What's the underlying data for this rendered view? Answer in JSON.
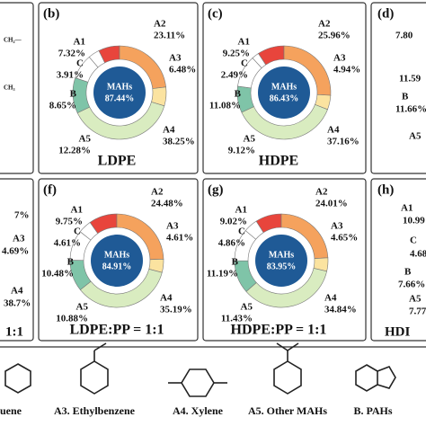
{
  "chart_data": [
    {
      "type": "donut",
      "panel": "(b)",
      "title": "LDPE",
      "center_label": "MAHs",
      "center_value": 87.44,
      "center_value_label": "87.44%",
      "categories": [
        "A1",
        "A2",
        "A3",
        "A4",
        "A5",
        "B",
        "C"
      ],
      "values": [
        7.32,
        23.11,
        6.48,
        38.25,
        12.28,
        8.65,
        3.91
      ],
      "value_labels": [
        "7.32%",
        "23.11%",
        "6.48%",
        "38.25%",
        "12.28%",
        "8.65%",
        "3.91%"
      ],
      "colors": [
        "#e8453c",
        "#f5a25d",
        "#fbe3a0",
        "#d9ecc0",
        "#7fc4a8",
        "#ffffff",
        "#ffffff"
      ],
      "center_color": "#1f5a96"
    },
    {
      "type": "donut",
      "panel": "(c)",
      "title": "HDPE",
      "center_label": "MAHs",
      "center_value": 86.43,
      "center_value_label": "86.43%",
      "categories": [
        "A1",
        "A2",
        "A3",
        "A4",
        "A5",
        "B",
        "C"
      ],
      "values": [
        9.25,
        25.96,
        4.94,
        37.16,
        9.12,
        11.08,
        2.49
      ],
      "value_labels": [
        "9.25%",
        "25.96%",
        "4.94%",
        "37.16%",
        "9.12%",
        "11.08%",
        "2.49%"
      ],
      "colors": [
        "#e8453c",
        "#f5a25d",
        "#fbe3a0",
        "#d9ecc0",
        "#7fc4a8",
        "#ffffff",
        "#ffffff"
      ],
      "center_color": "#1f5a96"
    },
    {
      "type": "donut",
      "panel": "(f)",
      "title": "LDPE:PP = 1:1",
      "center_label": "MAHs",
      "center_value": 84.91,
      "center_value_label": "84.91%",
      "categories": [
        "A1",
        "A2",
        "A3",
        "A4",
        "A5",
        "B",
        "C"
      ],
      "values": [
        9.75,
        24.48,
        4.61,
        35.19,
        10.88,
        10.48,
        4.61
      ],
      "value_labels": [
        "9.75%",
        "24.48%",
        "4.61%",
        "35.19%",
        "10.88%",
        "10.48%",
        "4.61%"
      ],
      "colors": [
        "#e8453c",
        "#f5a25d",
        "#fbe3a0",
        "#d9ecc0",
        "#7fc4a8",
        "#ffffff",
        "#ffffff"
      ],
      "center_color": "#1f5a96"
    },
    {
      "type": "donut",
      "panel": "(g)",
      "title": "HDPE:PP = 1:1",
      "center_label": "MAHs",
      "center_value": 83.95,
      "center_value_label": "83.95%",
      "categories": [
        "A1",
        "A2",
        "A3",
        "A4",
        "A5",
        "B",
        "C"
      ],
      "values": [
        9.02,
        24.01,
        4.65,
        34.84,
        11.43,
        11.19,
        4.86
      ],
      "value_labels": [
        "9.02%",
        "24.01%",
        "4.65%",
        "34.84%",
        "11.43%",
        "11.19%",
        "4.86%"
      ],
      "colors": [
        "#e8453c",
        "#f5a25d",
        "#fbe3a0",
        "#d9ecc0",
        "#7fc4a8",
        "#ffffff",
        "#ffffff"
      ],
      "center_color": "#1f5a96"
    }
  ],
  "fragments": [
    "CH₂—",
    "CH₃",
    "7%",
    "A3",
    "4.69%",
    "A4",
    "38.7%",
    "1:1",
    "(d)",
    "7.80",
    "11.59",
    "B",
    "11.66%",
    "A5",
    "(h)",
    "A1",
    "10.99",
    "C",
    "4.68",
    "B",
    "7.66%",
    "A5",
    "7.77",
    "HDI"
  ],
  "structures": [
    "uene",
    "A3. Ethylbenzene",
    "A4. Xylene",
    "A5. Other MAHs",
    "B. PAHs"
  ]
}
